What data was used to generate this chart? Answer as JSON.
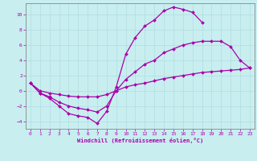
{
  "xlabel": "Windchill (Refroidissement éolien,°C)",
  "background_color": "#c8eef0",
  "line_color": "#aa00aa",
  "grid_color": "#b0dde0",
  "xlim": [
    -0.5,
    23.5
  ],
  "ylim": [
    -5,
    11.5
  ],
  "xticks": [
    0,
    1,
    2,
    3,
    4,
    5,
    6,
    7,
    8,
    9,
    10,
    11,
    12,
    13,
    14,
    15,
    16,
    17,
    18,
    19,
    20,
    21,
    22,
    23
  ],
  "yticks": [
    -4,
    -2,
    0,
    2,
    4,
    6,
    8,
    10
  ],
  "series": [
    {
      "x": [
        0,
        1,
        2,
        3,
        4,
        5,
        6,
        7,
        8,
        9,
        10,
        11,
        12,
        13,
        14,
        15,
        16,
        17,
        18
      ],
      "y": [
        1,
        -0.3,
        -1.0,
        -2.0,
        -3.0,
        -3.3,
        -3.5,
        -4.3,
        -2.7,
        0.5,
        4.8,
        7.0,
        8.5,
        9.3,
        10.5,
        11.0,
        10.7,
        10.3,
        9.0
      ]
    },
    {
      "x": [
        0,
        1,
        2,
        3,
        4,
        5,
        6,
        7,
        8,
        9,
        10,
        11,
        12,
        13,
        14,
        15,
        16,
        17,
        18,
        19,
        20,
        21,
        22,
        23
      ],
      "y": [
        1,
        -0.3,
        -0.8,
        -1.5,
        -2.0,
        -2.3,
        -2.5,
        -2.8,
        -2.0,
        0.0,
        1.5,
        2.5,
        3.5,
        4.0,
        5.0,
        5.5,
        6.0,
        6.3,
        6.5,
        6.5,
        6.5,
        5.8,
        4.0,
        3.0
      ]
    },
    {
      "x": [
        0,
        1,
        2,
        3,
        4,
        5,
        6,
        7,
        8,
        9,
        10,
        11,
        12,
        13,
        14,
        15,
        16,
        17,
        18,
        19,
        20,
        21,
        22,
        23
      ],
      "y": [
        1.0,
        0.0,
        -0.3,
        -0.5,
        -0.7,
        -0.8,
        -0.8,
        -0.8,
        -0.5,
        0.0,
        0.5,
        0.8,
        1.0,
        1.3,
        1.6,
        1.8,
        2.0,
        2.2,
        2.4,
        2.5,
        2.6,
        2.7,
        2.8,
        3.0
      ]
    }
  ]
}
